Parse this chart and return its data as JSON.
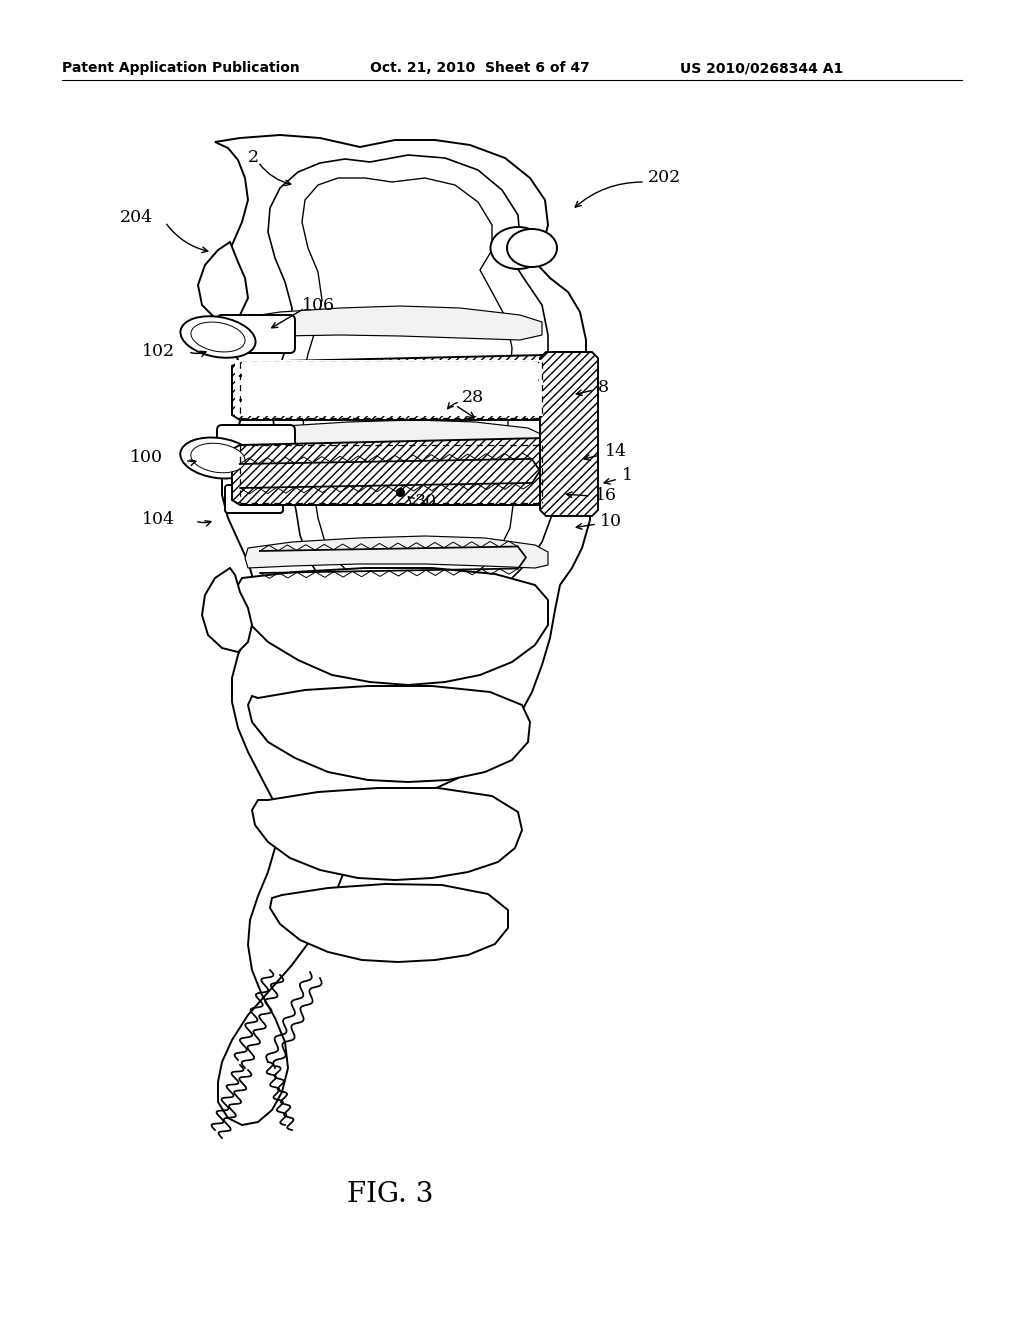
{
  "bg_color": "#ffffff",
  "header_left": "Patent Application Publication",
  "header_mid": "Oct. 21, 2010  Sheet 6 of 47",
  "header_right": "US 2010/0268344 A1",
  "fig_label": "FIG. 3",
  "line_color": "#000000",
  "lw": 1.4
}
